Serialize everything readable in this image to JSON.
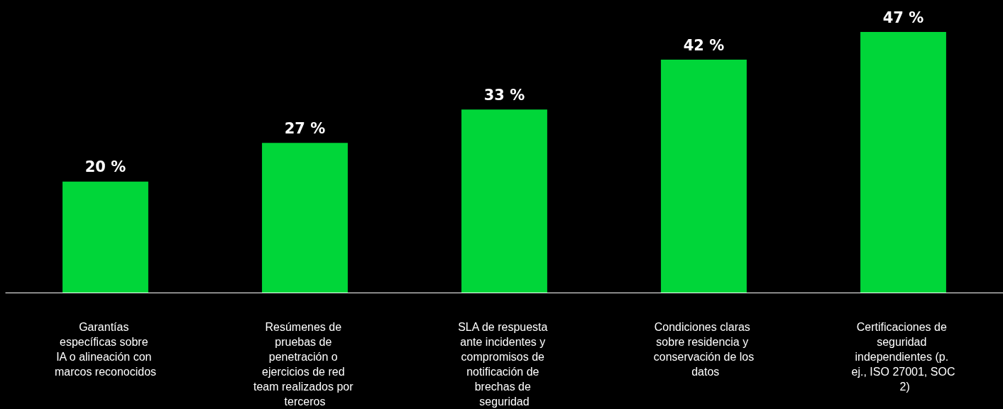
{
  "chart_data": {
    "type": "bar",
    "categories": [
      "Garantías específicas sobre IA o alineación con marcos reconocidos",
      "Resúmenes de pruebas de penetración o ejercicios de red team realizados por terceros",
      "SLA de respuesta ante incidentes y compromisos de notificación de brechas de seguridad",
      "Condiciones claras sobre residencia y conservación de los datos",
      "Certificaciones de seguridad independientes (p. ej., ISO 27001, SOC 2)"
    ],
    "values": [
      20,
      27,
      33,
      42,
      47
    ],
    "value_labels": [
      "20 %",
      "27 %",
      "33 %",
      "42 %",
      "47 %"
    ],
    "color": "#00d639",
    "grid": false
  }
}
